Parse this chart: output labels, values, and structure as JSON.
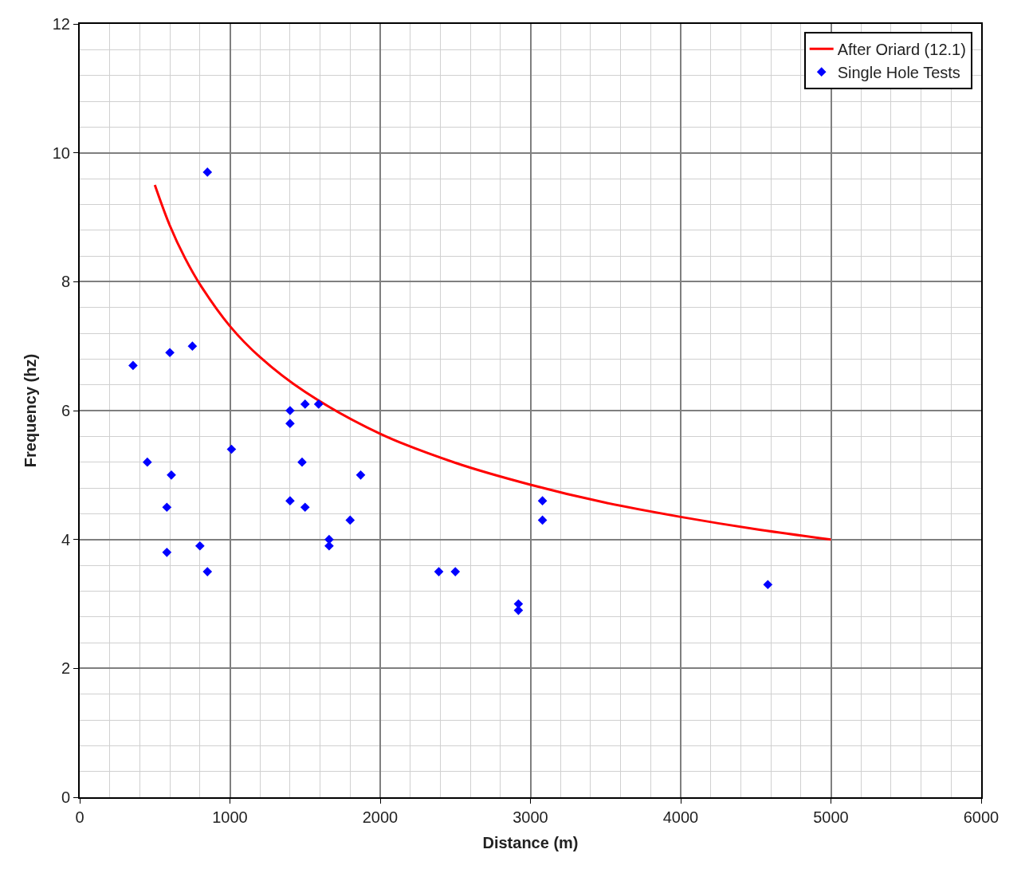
{
  "chart_data": {
    "type": "scatter",
    "xlabel": "Distance (m)",
    "ylabel": "Frequency (hz)",
    "xlim": [
      0,
      6000
    ],
    "xticks": [
      0,
      1000,
      2000,
      3000,
      4000,
      5000,
      6000
    ],
    "ylim": [
      0,
      12
    ],
    "yticks": [
      0,
      2,
      4,
      6,
      8,
      10,
      12
    ],
    "grid": true,
    "legend": "top right",
    "series": [
      {
        "name": "After Oriard (12.1)",
        "type": "line",
        "color": "#ff0000",
        "marker": "none",
        "line_style": "solid",
        "x": [
          500,
          600,
          700,
          800,
          1000,
          1200,
          1500,
          2000,
          2500,
          3000,
          3500,
          4000,
          4500,
          5000
        ],
        "values": [
          9.5,
          8.87,
          8.37,
          7.96,
          7.31,
          6.83,
          6.29,
          5.64,
          5.19,
          4.85,
          4.57,
          4.35,
          4.16,
          4.0
        ]
      },
      {
        "name": "Single Hole Tests",
        "color": "#0000ff",
        "marker": "diamond",
        "x": [
          355,
          450,
          580,
          580,
          600,
          610,
          750,
          800,
          850,
          850,
          1010,
          1400,
          1400,
          1400,
          1480,
          1500,
          1500,
          1590,
          1660,
          1660,
          1800,
          1870,
          2390,
          2500,
          2920,
          2920,
          3080,
          3080,
          4580
        ],
        "values": [
          6.7,
          5.2,
          4.5,
          3.8,
          6.9,
          5.0,
          7.0,
          3.9,
          9.7,
          3.5,
          5.4,
          6.0,
          5.8,
          4.6,
          5.2,
          6.1,
          4.5,
          6.1,
          4.0,
          3.9,
          4.3,
          5.0,
          3.5,
          3.5,
          3.0,
          2.9,
          4.6,
          4.3,
          3.3
        ]
      }
    ]
  }
}
